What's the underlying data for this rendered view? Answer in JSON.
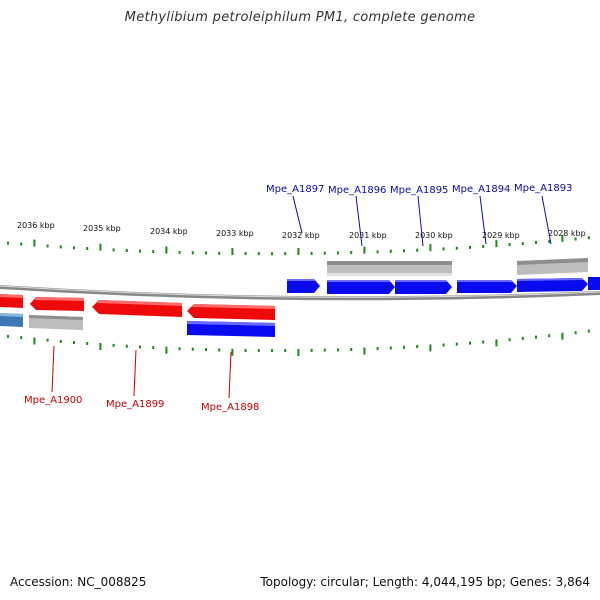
{
  "title": "Methylibium petroleiphilum PM1, complete genome",
  "accession": "Accession: NC_008825",
  "topology": "Topology: circular; Length: 4,044,195 bp; Genes: 3,864",
  "colors": {
    "forward_gene": "#0a0aee",
    "reverse_gene": "#ee0a0a",
    "other_feature": "#bdbdbd",
    "reverse_other": "#3b78b8",
    "tick": "#1a8a1a",
    "backbone": "#888888",
    "forward_label": "#0a0ab4",
    "reverse_label": "#c80000"
  },
  "ruler": [
    {
      "label": "2036 kbp"
    },
    {
      "label": "2035 kbp"
    },
    {
      "label": "2034 kbp"
    },
    {
      "label": "2033 kbp"
    },
    {
      "label": "2032 kbp"
    },
    {
      "label": "2031 kbp"
    },
    {
      "label": "2030 kbp"
    },
    {
      "label": "2029 kbp"
    },
    {
      "label": "2028 kbp"
    }
  ],
  "forward_labels": [
    {
      "name": "Mpe_A1897"
    },
    {
      "name": "Mpe_A1896"
    },
    {
      "name": "Mpe_A1895"
    },
    {
      "name": "Mpe_A1894"
    },
    {
      "name": "Mpe_A1893"
    }
  ],
  "reverse_labels": [
    {
      "name": "Mpe_A1900"
    },
    {
      "name": "Mpe_A1899"
    },
    {
      "name": "Mpe_A1898"
    }
  ]
}
